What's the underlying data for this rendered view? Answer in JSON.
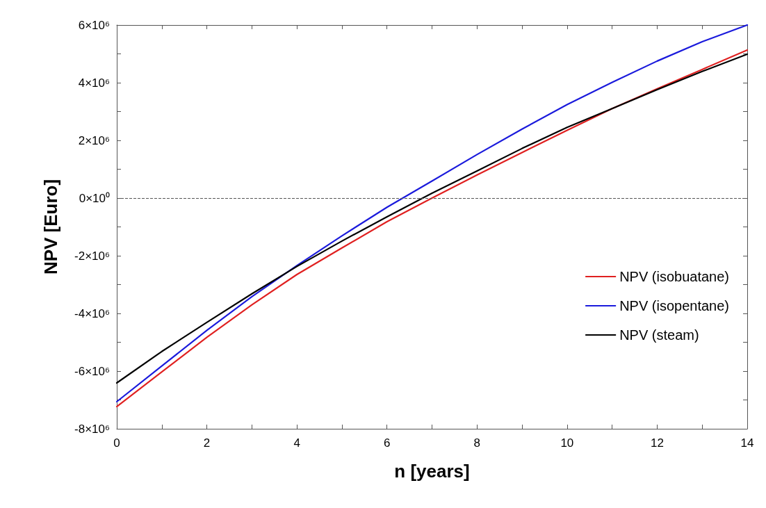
{
  "chart_data": {
    "type": "line",
    "xlabel": "n [years]",
    "ylabel": "NPV [Euro]",
    "x": [
      0,
      1,
      2,
      3,
      4,
      5,
      6,
      7,
      8,
      9,
      10,
      11,
      12,
      13,
      14
    ],
    "series": [
      {
        "name": "NPV (isobuatane)",
        "color": "#e02020",
        "values": [
          -7230000,
          -6030000,
          -4830000,
          -3700000,
          -2650000,
          -1730000,
          -820000,
          0,
          800000,
          1580000,
          2350000,
          3100000,
          3790000,
          4460000,
          5130000
        ]
      },
      {
        "name": "NPV (isopentane)",
        "color": "#1a1adc",
        "values": [
          -7060000,
          -5820000,
          -4590000,
          -3420000,
          -2340000,
          -1310000,
          -320000,
          590000,
          1510000,
          2390000,
          3240000,
          4010000,
          4750000,
          5420000,
          6000000
        ]
      },
      {
        "name": "NPV (steam)",
        "color": "#000000",
        "values": [
          -6410000,
          -5320000,
          -4310000,
          -3320000,
          -2370000,
          -1490000,
          -650000,
          170000,
          940000,
          1720000,
          2450000,
          3100000,
          3760000,
          4390000,
          4990000
        ]
      }
    ],
    "xlim": [
      0,
      14
    ],
    "xticks": [
      0,
      {
        "value": 1,
        "label": null
      },
      2,
      {
        "value": 3,
        "label": null
      },
      4,
      {
        "value": 5,
        "label": null
      },
      6,
      {
        "value": 7,
        "label": null
      },
      8,
      {
        "value": 9,
        "label": null
      },
      10,
      {
        "value": 11,
        "label": null
      },
      12,
      {
        "value": 13,
        "label": null
      },
      14
    ],
    "ylim": [
      -8000000,
      6000000
    ],
    "yticks": [
      {
        "value": -8000000,
        "label": "-8×10⁶"
      },
      {
        "value": -7000000,
        "label": null
      },
      {
        "value": -6000000,
        "label": "-6×10⁶"
      },
      {
        "value": -5000000,
        "label": null
      },
      {
        "value": -4000000,
        "label": "-4×10⁶"
      },
      {
        "value": -3000000,
        "label": null
      },
      {
        "value": -2000000,
        "label": "-2×10⁶"
      },
      {
        "value": -1000000,
        "label": null
      },
      {
        "value": 0,
        "label": "0×10⁰"
      },
      {
        "value": 1000000,
        "label": null
      },
      {
        "value": 2000000,
        "label": "2×10⁶"
      },
      {
        "value": 3000000,
        "label": null
      },
      {
        "value": 4000000,
        "label": "4×10⁶"
      },
      {
        "value": 5000000,
        "label": null
      },
      {
        "value": 6000000,
        "label": "6×10⁶"
      }
    ],
    "ref_lines": [
      {
        "axis": "y",
        "value": 0,
        "color": "#555555",
        "line_style": "dashed"
      }
    ],
    "grid": false,
    "legend": "right",
    "marker": "none",
    "line_style": "solid"
  }
}
